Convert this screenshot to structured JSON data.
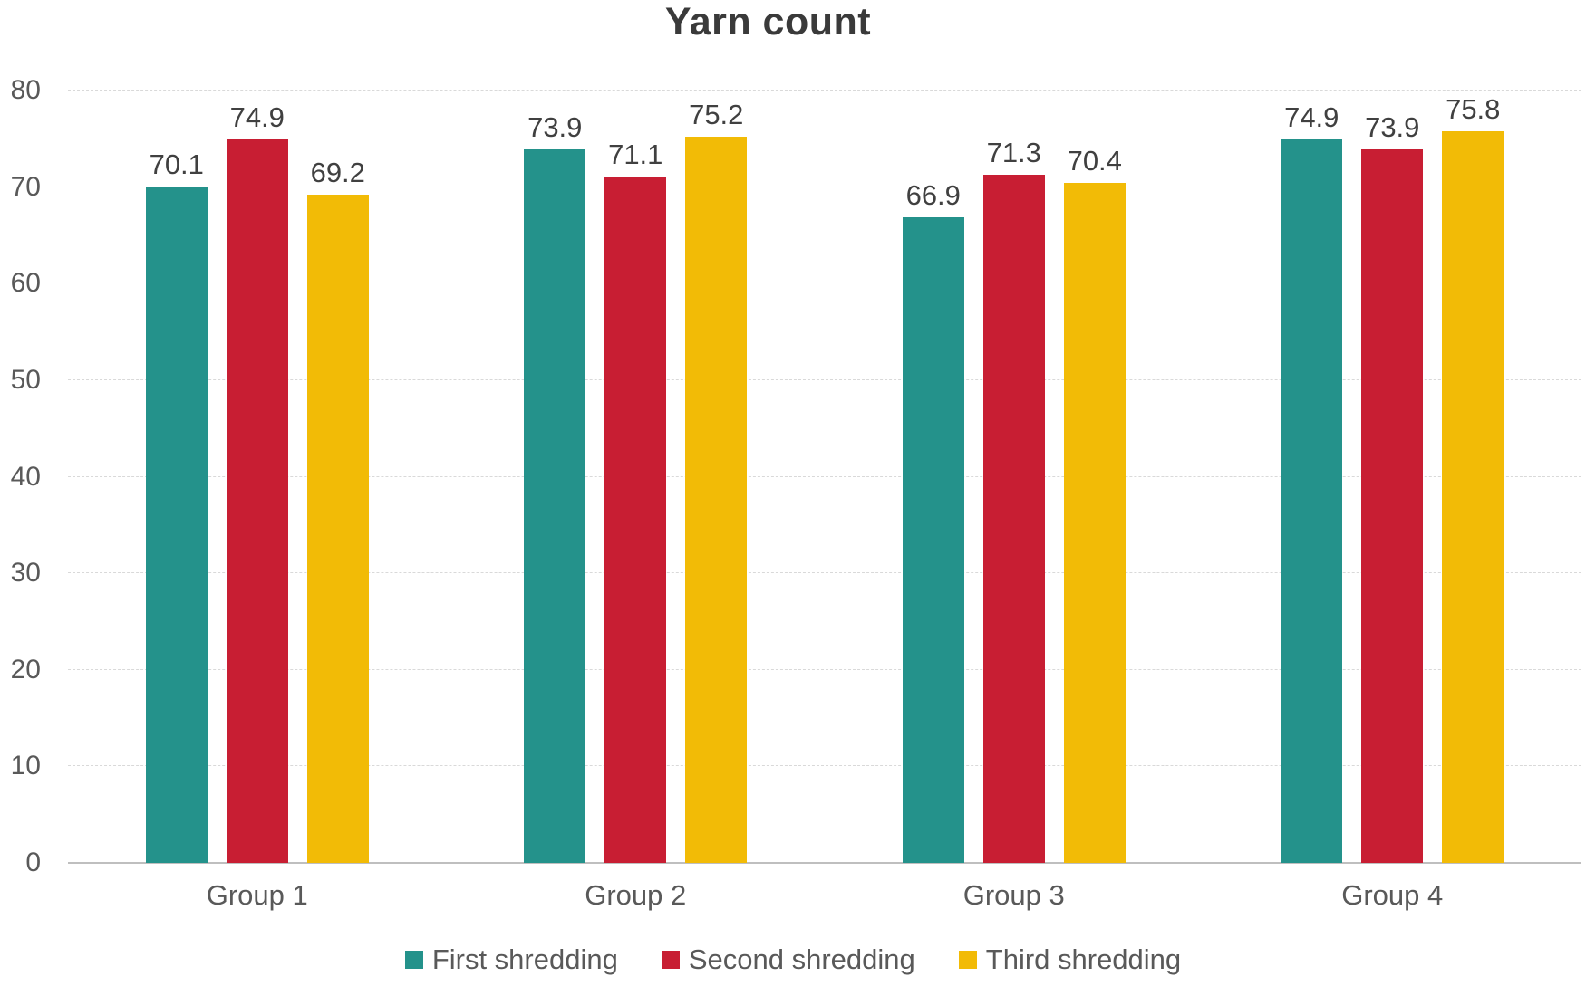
{
  "title": "Yarn count",
  "chart_data": {
    "type": "bar",
    "title": "Yarn count",
    "categories": [
      "Group 1",
      "Group 2",
      "Group 3",
      "Group 4"
    ],
    "series": [
      {
        "name": "First shredding",
        "color": "#24928B",
        "values": [
          70.1,
          73.9,
          66.9,
          74.9
        ]
      },
      {
        "name": "Second shredding",
        "color": "#C81E33",
        "values": [
          74.9,
          71.1,
          71.3,
          73.9
        ]
      },
      {
        "name": "Third shredding",
        "color": "#F2BB06",
        "values": [
          69.2,
          75.2,
          70.4,
          75.8
        ]
      }
    ],
    "xlabel": "",
    "ylabel": "",
    "ylim": [
      0,
      80
    ],
    "yticks": [
      0,
      10,
      20,
      30,
      40,
      50,
      60,
      70,
      80
    ],
    "grid": "horizontal-dashed",
    "gridline_color": "#d9d9d9",
    "axis_line_color": "#bfbfbf",
    "tick_label_color": "#595959",
    "data_label_color": "#404040",
    "data_label_decimals": 1,
    "legend_position": "bottom"
  }
}
